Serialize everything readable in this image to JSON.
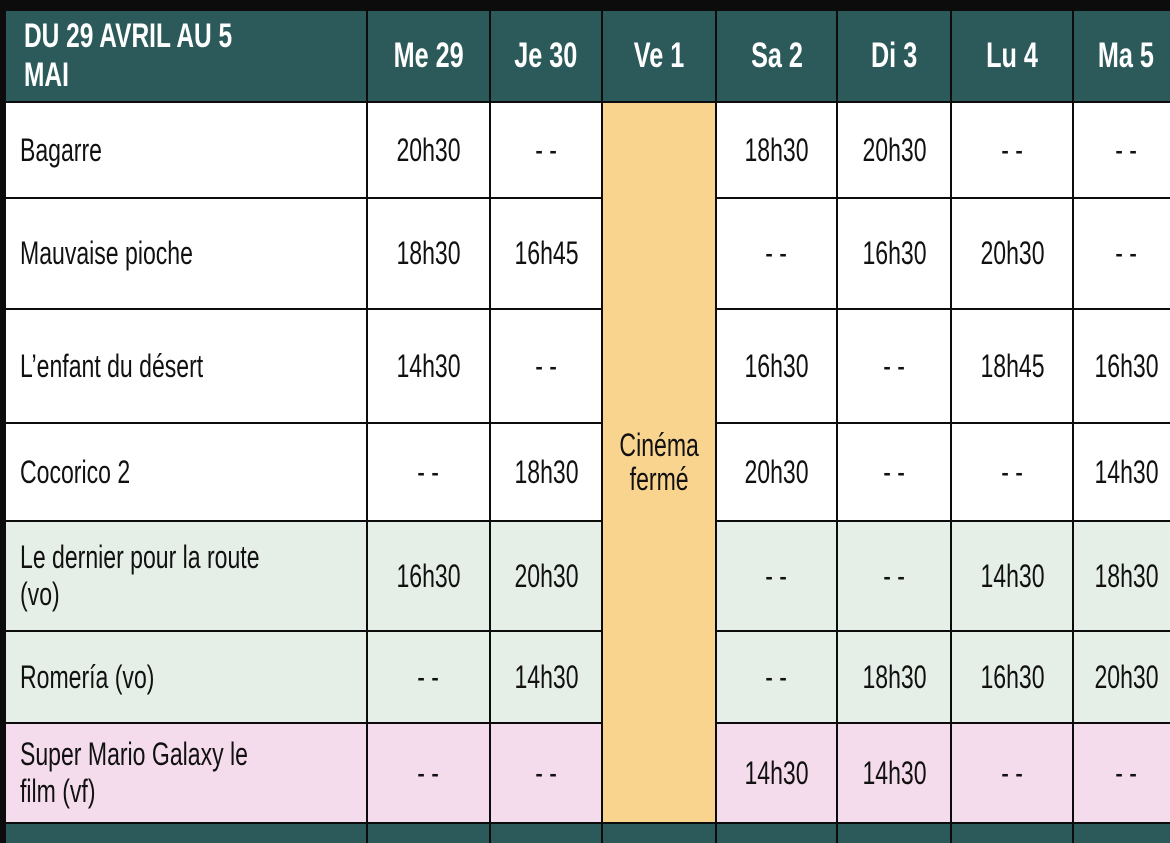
{
  "header": {
    "title": "DU 29 AVRIL AU 5 MAI",
    "days": [
      "Me 29",
      "Je 30",
      "Ve 1",
      "Sa 2",
      "Di 3",
      "Lu 4",
      "Ma 5"
    ]
  },
  "closed_notice": {
    "line1": "Cinéma",
    "line2": "fermé"
  },
  "rows": [
    {
      "film": "Bagarre",
      "times": [
        "20h30",
        "- -",
        "18h30",
        "20h30",
        "- -",
        "- -"
      ]
    },
    {
      "film": "Mauvaise pioche",
      "times": [
        "18h30",
        "16h45",
        "- -",
        "16h30",
        "20h30",
        "- -"
      ]
    },
    {
      "film": "L’enfant du désert",
      "times": [
        "14h30",
        "- -",
        "16h30",
        "- -",
        "18h45",
        "16h30"
      ]
    },
    {
      "film": "Cocorico 2",
      "times": [
        "- -",
        "18h30",
        "20h30",
        "- -",
        "- -",
        "14h30"
      ]
    },
    {
      "film": "Le dernier pour la route (vo)",
      "times": [
        "16h30",
        "20h30",
        "- -",
        "- -",
        "14h30",
        "18h30"
      ]
    },
    {
      "film": "Romería (vo)",
      "times": [
        "- -",
        "14h30",
        "- -",
        "18h30",
        "16h30",
        "20h30"
      ]
    },
    {
      "film": "Super Mario Galaxy le film (vf)",
      "times": [
        "- -",
        "- -",
        "14h30",
        "14h30",
        "- -",
        "- -"
      ]
    }
  ],
  "colors": {
    "header_bg": "#2c5a5a",
    "closed_bg": "#f8d48e",
    "row_white": "#ffffff",
    "row_green": "#e6efe7",
    "row_pink": "#f5dcec",
    "grid_lines": "#0c0c0c"
  }
}
